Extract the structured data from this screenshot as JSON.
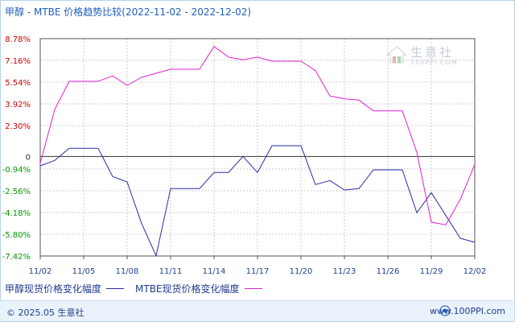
{
  "header": {
    "title": "甲醇 - MTBE 价格趋势比较(2022-11-02 - 2022-12-02)"
  },
  "legend": {
    "items": [
      {
        "label": "甲醇现货价格变化幅度",
        "color": "#2a2aa8"
      },
      {
        "label": "MTBE现货价格变化幅度",
        "color": "#e020d0"
      }
    ]
  },
  "footer": {
    "copyright": "© 2025.05 生意社",
    "site": "www.100PPI.com"
  },
  "watermark": {
    "name": "生意社",
    "url": "100PPI.COM"
  },
  "colors": {
    "positive_tick": "#cc0000",
    "zero_tick": "#333333",
    "negative_tick": "#009900",
    "axis": "#555555",
    "grid": "#cccccc",
    "zero_line": "#333333"
  },
  "chart_data": {
    "type": "line",
    "title": "甲醇 - MTBE 价格趋势比较(2022-11-02 - 2022-12-02)",
    "x": [
      "11/02",
      "11/03",
      "11/04",
      "11/05",
      "11/06",
      "11/07",
      "11/08",
      "11/09",
      "11/10",
      "11/11",
      "11/12",
      "11/13",
      "11/14",
      "11/15",
      "11/16",
      "11/17",
      "11/18",
      "11/19",
      "11/20",
      "11/21",
      "11/22",
      "11/23",
      "11/24",
      "11/25",
      "11/26",
      "11/27",
      "11/28",
      "11/29",
      "11/30",
      "12/01",
      "12/02"
    ],
    "x_tick_labels": [
      "11/02",
      "11/05",
      "11/08",
      "11/11",
      "11/14",
      "11/17",
      "11/20",
      "11/23",
      "11/26",
      "11/29",
      "12/02"
    ],
    "y_ticks": [
      8.78,
      7.16,
      5.54,
      3.92,
      2.3,
      0,
      -0.94,
      -2.56,
      -4.18,
      -5.8,
      -7.42
    ],
    "y_tick_labels": [
      "8.78%",
      "7.16%",
      "5.54%",
      "3.92%",
      "2.30%",
      "0",
      "-0.94%",
      "-2.56%",
      "-4.18%",
      "-5.80%",
      "-7.42%"
    ],
    "ylim": [
      -7.42,
      8.78
    ],
    "grid": true,
    "legend_position": "bottom-left",
    "series": [
      {
        "name": "甲醇现货价格变化幅度",
        "color": "#2a2aa8",
        "values": [
          -0.7,
          -0.3,
          0.6,
          0.6,
          0.6,
          -1.5,
          -1.9,
          -5.0,
          -7.4,
          -2.4,
          -2.4,
          -2.4,
          -1.2,
          -1.2,
          0.0,
          -1.2,
          0.8,
          0.8,
          0.8,
          -2.1,
          -1.8,
          -2.5,
          -2.4,
          -1.0,
          -1.0,
          -1.0,
          -4.2,
          -2.7,
          -4.4,
          -6.1,
          -6.4
        ]
      },
      {
        "name": "MTBE现货价格变化幅度",
        "color": "#e020d0",
        "values": [
          -0.5,
          3.5,
          5.6,
          5.6,
          5.6,
          6.0,
          5.3,
          5.9,
          6.2,
          6.5,
          6.5,
          6.5,
          8.2,
          7.4,
          7.2,
          7.4,
          7.1,
          7.1,
          7.1,
          6.4,
          4.5,
          4.3,
          4.2,
          3.4,
          3.4,
          3.4,
          0.3,
          -4.9,
          -5.1,
          -3.2,
          -0.6
        ]
      }
    ]
  }
}
